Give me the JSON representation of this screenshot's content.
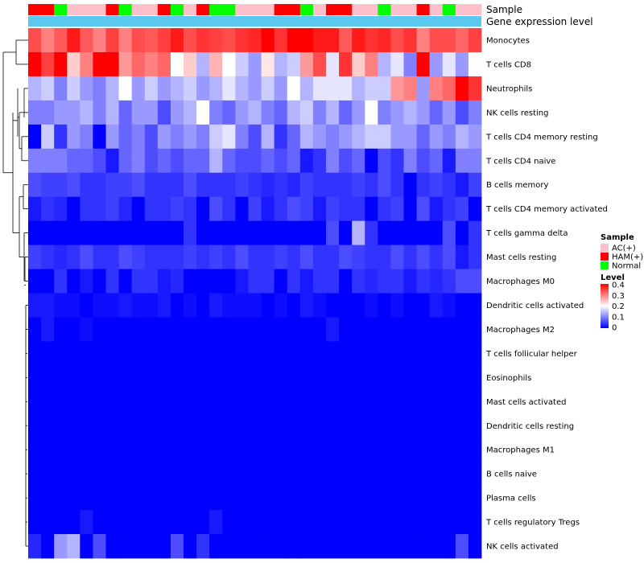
{
  "chart_data": {
    "type": "heatmap",
    "annotation_tracks": [
      {
        "name": "Sample",
        "values": [
          "HAM(+)",
          "HAM(+)",
          "Normal",
          "AC(+)",
          "AC(+)",
          "AC(+)",
          "HAM(+)",
          "Normal",
          "AC(+)",
          "AC(+)",
          "HAM(+)",
          "Normal",
          "AC(+)",
          "HAM(+)",
          "Normal",
          "Normal",
          "AC(+)",
          "AC(+)",
          "AC(+)",
          "HAM(+)",
          "HAM(+)",
          "Normal",
          "AC(+)",
          "HAM(+)",
          "HAM(+)",
          "AC(+)",
          "AC(+)",
          "Normal",
          "AC(+)",
          "AC(+)",
          "HAM(+)",
          "AC(+)",
          "Normal",
          "AC(+)",
          "AC(+)"
        ]
      },
      {
        "name": "Gene expression level",
        "color": "#5BC8F0"
      }
    ],
    "rows": [
      {
        "name": "Monocytes",
        "values": [
          0.34,
          0.3,
          0.33,
          0.38,
          0.33,
          0.3,
          0.35,
          0.3,
          0.34,
          0.33,
          0.35,
          0.38,
          0.34,
          0.36,
          0.35,
          0.34,
          0.36,
          0.37,
          0.4,
          0.36,
          0.4,
          0.4,
          0.38,
          0.38,
          0.33,
          0.38,
          0.36,
          0.37,
          0.34,
          0.36,
          0.3,
          0.34,
          0.34,
          0.32,
          0.35
        ]
      },
      {
        "name": "T cells CD8",
        "values": [
          0.4,
          0.35,
          0.4,
          0.24,
          0.3,
          0.4,
          0.4,
          0.28,
          0.32,
          0.3,
          0.32,
          0.2,
          0.24,
          0.14,
          0.26,
          0.2,
          0.16,
          0.12,
          0.22,
          0.14,
          0.16,
          0.28,
          0.34,
          0.18,
          0.36,
          0.24,
          0.3,
          0.14,
          0.18,
          0.1,
          0.4,
          0.12,
          0.18,
          0.12,
          0.2
        ]
      },
      {
        "name": "Neutrophils",
        "values": [
          0.14,
          0.16,
          0.1,
          0.16,
          0.12,
          0.1,
          0.14,
          0.2,
          0.12,
          0.16,
          0.12,
          0.14,
          0.16,
          0.12,
          0.14,
          0.18,
          0.14,
          0.12,
          0.16,
          0.12,
          0.2,
          0.14,
          0.18,
          0.18,
          0.18,
          0.14,
          0.16,
          0.16,
          0.28,
          0.3,
          0.12,
          0.3,
          0.32,
          0.4,
          0.36
        ]
      },
      {
        "name": "NK cells resting",
        "values": [
          0.1,
          0.1,
          0.12,
          0.12,
          0.14,
          0.1,
          0.14,
          0.08,
          0.12,
          0.12,
          0.06,
          0.12,
          0.14,
          0.2,
          0.1,
          0.08,
          0.12,
          0.14,
          0.1,
          0.08,
          0.14,
          0.16,
          0.1,
          0.14,
          0.08,
          0.12,
          0.2,
          0.1,
          0.12,
          0.14,
          0.12,
          0.08,
          0.12,
          0.06,
          0.1
        ]
      },
      {
        "name": "T cells CD4 memory resting",
        "values": [
          0.0,
          0.16,
          0.04,
          0.12,
          0.1,
          0.0,
          0.12,
          0.08,
          0.1,
          0.06,
          0.12,
          0.1,
          0.12,
          0.1,
          0.16,
          0.18,
          0.1,
          0.06,
          0.14,
          0.04,
          0.08,
          0.14,
          0.12,
          0.1,
          0.12,
          0.14,
          0.16,
          0.16,
          0.12,
          0.12,
          0.08,
          0.12,
          0.1,
          0.14,
          0.12
        ]
      },
      {
        "name": "T cells CD4 naive",
        "values": [
          0.1,
          0.1,
          0.1,
          0.08,
          0.08,
          0.06,
          0.02,
          0.08,
          0.1,
          0.06,
          0.08,
          0.06,
          0.08,
          0.08,
          0.14,
          0.08,
          0.06,
          0.06,
          0.08,
          0.06,
          0.08,
          0.02,
          0.04,
          0.1,
          0.06,
          0.08,
          0.0,
          0.06,
          0.04,
          0.1,
          0.06,
          0.08,
          0.02,
          0.1,
          0.1
        ]
      },
      {
        "name": "B cells memory",
        "values": [
          0.06,
          0.05,
          0.05,
          0.06,
          0.04,
          0.04,
          0.05,
          0.05,
          0.06,
          0.04,
          0.04,
          0.04,
          0.06,
          0.04,
          0.04,
          0.04,
          0.05,
          0.04,
          0.03,
          0.04,
          0.03,
          0.05,
          0.04,
          0.04,
          0.04,
          0.05,
          0.04,
          0.06,
          0.04,
          0.0,
          0.04,
          0.05,
          0.04,
          0.02,
          0.05
        ]
      },
      {
        "name": "T cells CD4 memory activated",
        "values": [
          0.02,
          0.04,
          0.03,
          0.0,
          0.04,
          0.04,
          0.05,
          0.03,
          0.0,
          0.04,
          0.04,
          0.05,
          0.04,
          0.0,
          0.06,
          0.04,
          0.0,
          0.05,
          0.02,
          0.04,
          0.06,
          0.05,
          0.02,
          0.05,
          0.04,
          0.04,
          0.0,
          0.04,
          0.05,
          0.0,
          0.06,
          0.02,
          0.04,
          0.05,
          0.0
        ]
      },
      {
        "name": "T cells gamma delta",
        "values": [
          0.0,
          0.0,
          0.0,
          0.0,
          0.0,
          0.0,
          0.0,
          0.0,
          0.0,
          0.0,
          0.0,
          0.0,
          0.04,
          0.0,
          0.0,
          0.0,
          0.0,
          0.0,
          0.0,
          0.0,
          0.0,
          0.0,
          0.0,
          0.06,
          0.0,
          0.14,
          0.04,
          0.0,
          0.0,
          0.0,
          0.0,
          0.0,
          0.06,
          0.0,
          0.04
        ]
      },
      {
        "name": "Mast cells resting",
        "values": [
          0.05,
          0.04,
          0.03,
          0.04,
          0.06,
          0.04,
          0.04,
          0.06,
          0.05,
          0.04,
          0.04,
          0.04,
          0.05,
          0.04,
          0.05,
          0.04,
          0.06,
          0.04,
          0.04,
          0.05,
          0.04,
          0.06,
          0.04,
          0.04,
          0.06,
          0.05,
          0.04,
          0.04,
          0.06,
          0.04,
          0.06,
          0.04,
          0.06,
          0.02,
          0.04
        ]
      },
      {
        "name": "Macrophages M0",
        "values": [
          0.0,
          0.0,
          0.04,
          0.0,
          0.02,
          0.0,
          0.04,
          0.0,
          0.04,
          0.04,
          0.02,
          0.03,
          0.0,
          0.0,
          0.0,
          0.0,
          0.02,
          0.04,
          0.04,
          0.0,
          0.04,
          0.02,
          0.04,
          0.04,
          0.0,
          0.04,
          0.03,
          0.04,
          0.04,
          0.02,
          0.04,
          0.03,
          0.04,
          0.06,
          0.06
        ]
      },
      {
        "name": "Dendritic cells activated",
        "values": [
          0.02,
          0.02,
          0.01,
          0.01,
          0.0,
          0.01,
          0.01,
          0.02,
          0.01,
          0.01,
          0.02,
          0.0,
          0.01,
          0.0,
          0.02,
          0.01,
          0.01,
          0.01,
          0.0,
          0.01,
          0.0,
          0.02,
          0.01,
          0.0,
          0.0,
          0.0,
          0.01,
          0.0,
          0.01,
          0.0,
          0.0,
          0.02,
          0.01,
          0.0,
          0.0
        ]
      },
      {
        "name": "Macrophages M2",
        "values": [
          0.0,
          0.02,
          0.0,
          0.0,
          0.01,
          0.0,
          0.0,
          0.0,
          0.0,
          0.0,
          0.0,
          0.0,
          0.0,
          0.0,
          0.0,
          0.0,
          0.0,
          0.0,
          0.0,
          0.0,
          0.0,
          0.0,
          0.0,
          0.02,
          0.0,
          0.0,
          0.0,
          0.0,
          0.0,
          0.0,
          0.0,
          0.0,
          0.0,
          0.0,
          0.0
        ]
      },
      {
        "name": "T cells follicular helper",
        "values": [
          0.0,
          0.0,
          0.0,
          0.0,
          0.0,
          0.0,
          0.0,
          0.0,
          0.0,
          0.0,
          0.0,
          0.0,
          0.0,
          0.0,
          0.0,
          0.0,
          0.0,
          0.0,
          0.0,
          0.0,
          0.0,
          0.0,
          0.0,
          0.0,
          0.0,
          0.0,
          0.0,
          0.0,
          0.0,
          0.0,
          0.0,
          0.0,
          0.0,
          0.0,
          0.0
        ]
      },
      {
        "name": "Eosinophils",
        "values": [
          0.0,
          0.0,
          0.0,
          0.0,
          0.0,
          0.0,
          0.0,
          0.0,
          0.0,
          0.0,
          0.0,
          0.0,
          0.0,
          0.0,
          0.0,
          0.0,
          0.0,
          0.0,
          0.0,
          0.0,
          0.0,
          0.0,
          0.0,
          0.0,
          0.0,
          0.0,
          0.0,
          0.0,
          0.0,
          0.0,
          0.0,
          0.0,
          0.0,
          0.0,
          0.0
        ]
      },
      {
        "name": "Mast cells activated",
        "values": [
          0.0,
          0.0,
          0.0,
          0.0,
          0.0,
          0.0,
          0.0,
          0.0,
          0.0,
          0.0,
          0.0,
          0.0,
          0.0,
          0.0,
          0.0,
          0.0,
          0.0,
          0.0,
          0.0,
          0.0,
          0.0,
          0.0,
          0.0,
          0.0,
          0.0,
          0.0,
          0.0,
          0.0,
          0.0,
          0.0,
          0.0,
          0.0,
          0.0,
          0.0,
          0.0
        ]
      },
      {
        "name": "Dendritic cells resting",
        "values": [
          0.0,
          0.0,
          0.0,
          0.0,
          0.0,
          0.0,
          0.0,
          0.0,
          0.0,
          0.0,
          0.0,
          0.0,
          0.0,
          0.0,
          0.0,
          0.0,
          0.0,
          0.0,
          0.0,
          0.0,
          0.0,
          0.0,
          0.0,
          0.0,
          0.0,
          0.0,
          0.0,
          0.0,
          0.0,
          0.0,
          0.0,
          0.0,
          0.0,
          0.0,
          0.0
        ]
      },
      {
        "name": "Macrophages M1",
        "values": [
          0.0,
          0.0,
          0.0,
          0.0,
          0.0,
          0.0,
          0.0,
          0.0,
          0.0,
          0.0,
          0.0,
          0.0,
          0.0,
          0.0,
          0.0,
          0.0,
          0.0,
          0.0,
          0.0,
          0.0,
          0.0,
          0.0,
          0.0,
          0.0,
          0.0,
          0.0,
          0.0,
          0.0,
          0.0,
          0.0,
          0.0,
          0.0,
          0.0,
          0.0,
          0.0
        ]
      },
      {
        "name": "B cells naive",
        "values": [
          0.0,
          0.0,
          0.0,
          0.0,
          0.0,
          0.0,
          0.0,
          0.0,
          0.0,
          0.0,
          0.0,
          0.0,
          0.0,
          0.0,
          0.0,
          0.0,
          0.0,
          0.0,
          0.0,
          0.0,
          0.0,
          0.0,
          0.0,
          0.0,
          0.0,
          0.0,
          0.0,
          0.0,
          0.0,
          0.0,
          0.0,
          0.0,
          0.0,
          0.0,
          0.0
        ]
      },
      {
        "name": "Plasma cells",
        "values": [
          0.0,
          0.0,
          0.0,
          0.0,
          0.0,
          0.0,
          0.0,
          0.0,
          0.0,
          0.0,
          0.0,
          0.0,
          0.0,
          0.0,
          0.0,
          0.0,
          0.0,
          0.0,
          0.0,
          0.0,
          0.0,
          0.0,
          0.0,
          0.0,
          0.0,
          0.0,
          0.0,
          0.0,
          0.0,
          0.0,
          0.0,
          0.0,
          0.0,
          0.0,
          0.0
        ]
      },
      {
        "name": "T cells regulatory  Tregs",
        "values": [
          0.0,
          0.0,
          0.0,
          0.0,
          0.02,
          0.0,
          0.0,
          0.0,
          0.0,
          0.0,
          0.0,
          0.0,
          0.0,
          0.0,
          0.02,
          0.0,
          0.0,
          0.0,
          0.0,
          0.0,
          0.0,
          0.0,
          0.0,
          0.0,
          0.0,
          0.0,
          0.0,
          0.0,
          0.0,
          0.0,
          0.0,
          0.0,
          0.0,
          0.0,
          0.0
        ]
      },
      {
        "name": "NK cells activated",
        "values": [
          0.03,
          0.0,
          0.12,
          0.14,
          0.0,
          0.06,
          0.0,
          0.0,
          0.0,
          0.0,
          0.0,
          0.06,
          0.0,
          0.04,
          0.0,
          0.0,
          0.0,
          0.0,
          0.0,
          0.0,
          0.0,
          0.0,
          0.0,
          0.0,
          0.0,
          0.0,
          0.0,
          0.0,
          0.0,
          0.0,
          0.0,
          0.0,
          0.0,
          0.06,
          0.0
        ]
      }
    ],
    "color_scale": {
      "min": 0,
      "max": 0.4,
      "low": "#0000FF",
      "mid": "#FFFFFF",
      "high": "#FF0000",
      "midpoint": 0.2
    },
    "legend": {
      "sample_title": "Sample",
      "sample_items": [
        {
          "label": "AC(+)",
          "color": "#FFC0CB"
        },
        {
          "label": "HAM(+)",
          "color": "#FF0000"
        },
        {
          "label": "Normal",
          "color": "#00FF00"
        }
      ],
      "level_title": "Level",
      "level_ticks": [
        "0.4",
        "0.3",
        "0.2",
        "0.1",
        "0"
      ],
      "placement": "right"
    }
  }
}
